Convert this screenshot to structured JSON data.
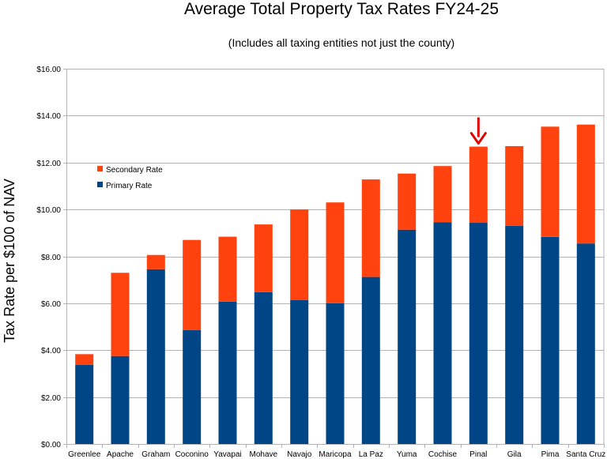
{
  "chart_data": {
    "type": "bar",
    "stacked": true,
    "title": "Average Total Property Tax Rates FY24-25",
    "subtitle": "(Includes all taxing entities not just the county)",
    "xlabel": "",
    "ylabel": "Tax Rate per $100 of NAV",
    "ylim": [
      0,
      16
    ],
    "ytick_values": [
      0,
      2,
      4,
      6,
      8,
      10,
      12,
      14,
      16
    ],
    "ytick_labels": [
      "$0.00",
      "$2.00",
      "$4.00",
      "$6.00",
      "$8.00",
      "$10.00",
      "$12.00",
      "$14.00",
      "$16.00"
    ],
    "grid": true,
    "legend_position": "upper-left",
    "categories": [
      "Greenlee",
      "Apache",
      "Graham",
      "Coconino",
      "Yavapai",
      "Mohave",
      "Navajo",
      "Maricopa",
      "La Paz",
      "Yuma",
      "Cochise",
      "Pinal",
      "Gila",
      "Pima",
      "Santa Cruz"
    ],
    "series": [
      {
        "name": "Primary Rate",
        "color": "#004586",
        "values": [
          3.38,
          3.75,
          7.45,
          4.86,
          6.07,
          6.47,
          6.14,
          6.0,
          7.12,
          9.14,
          9.46,
          9.43,
          9.3,
          8.83,
          8.55
        ]
      },
      {
        "name": "Secondary Rate",
        "color": "#ff420e",
        "values": [
          0.45,
          3.55,
          0.61,
          3.84,
          2.77,
          2.89,
          3.86,
          4.3,
          4.16,
          2.39,
          2.39,
          3.25,
          3.4,
          4.7,
          5.07
        ]
      }
    ],
    "legend_order": [
      "Secondary Rate",
      "Primary Rate"
    ],
    "annotation": {
      "type": "arrow",
      "target_category": "Pinal",
      "color": "#e00000"
    }
  }
}
